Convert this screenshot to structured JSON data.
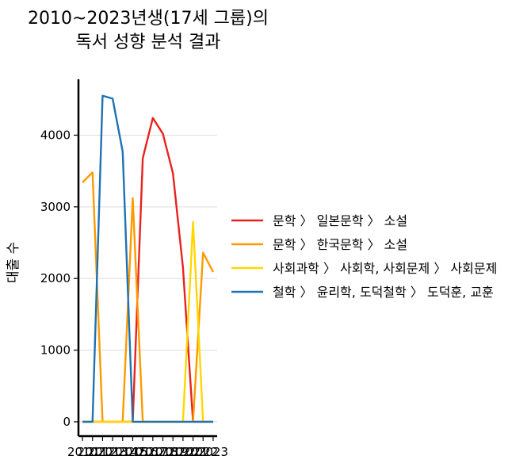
{
  "chart_data": {
    "type": "line",
    "title_lines": [
      "2010~2023년생(17세 그룹)의",
      "독서 성향 분석 결과"
    ],
    "xlabel": "",
    "ylabel": "대출 수",
    "x": [
      2010,
      2011,
      2012,
      2013,
      2014,
      2015,
      2016,
      2017,
      2018,
      2019,
      2020,
      2021,
      2022,
      2023
    ],
    "x_tick_labels": [
      "2010",
      "2011",
      "2012",
      "2013",
      "2014",
      "2015",
      "2016",
      "2017",
      "2018",
      "2019",
      "2020",
      "2021",
      "2022",
      "2023"
    ],
    "xlim": [
      2009.6,
      2023.4
    ],
    "ylim": [
      -200,
      4780
    ],
    "y_ticks": [
      0,
      1000,
      2000,
      3000,
      4000
    ],
    "grid": "horizontal",
    "legend_position": "right",
    "series": [
      {
        "name": "문학 〉 일본문학 〉 소설",
        "color": "#e8231f",
        "values": [
          0,
          0,
          0,
          0,
          0,
          0,
          3680,
          4240,
          4020,
          3470,
          2150,
          0,
          0,
          0
        ]
      },
      {
        "name": "문학 〉 한국문학 〉 소설",
        "color": "#ff9a00",
        "values": [
          3340,
          3480,
          0,
          0,
          0,
          3120,
          0,
          0,
          0,
          0,
          0,
          0,
          2360,
          2090
        ]
      },
      {
        "name": "사회과학 〉 사회학, 사회문제 〉 사회문제",
        "color": "#ffd700",
        "values": [
          0,
          0,
          0,
          0,
          0,
          0,
          0,
          0,
          0,
          0,
          0,
          2790,
          0,
          0
        ]
      },
      {
        "name": "철학 〉 윤리학, 도덕철학 〉 도덕훈, 교훈",
        "color": "#1f72b4",
        "values": [
          0,
          0,
          4550,
          4510,
          3770,
          0,
          0,
          0,
          0,
          0,
          0,
          0,
          0,
          0
        ]
      }
    ]
  }
}
